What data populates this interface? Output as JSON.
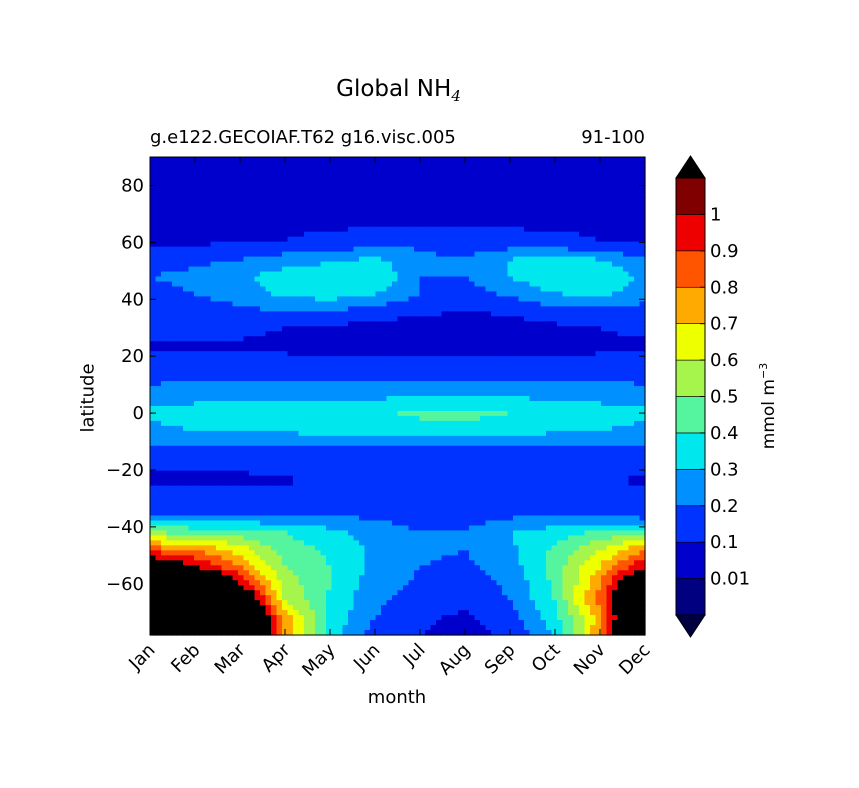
{
  "chart_data": {
    "type": "heatmap",
    "title_main": "Global NH",
    "title_sub": "4",
    "subtitle_left": "g.e122.GECOIAF.T62 g16.visc.005",
    "subtitle_right": "91-100",
    "xlabel": "month",
    "ylabel": "latitude",
    "x_ticks": [
      "Jan",
      "Feb",
      "Mar",
      "Apr",
      "May",
      "Jun",
      "Jul",
      "Aug",
      "Sep",
      "Oct",
      "Nov",
      "Dec"
    ],
    "y_ticks": [
      80,
      60,
      40,
      20,
      0,
      -20,
      -40,
      -60
    ],
    "ylim": [
      -78,
      90
    ],
    "colorbar": {
      "label_main": "mmol m",
      "label_exp": "−3",
      "levels": [
        0.01,
        0.1,
        0.2,
        0.3,
        0.4,
        0.5,
        0.6,
        0.7,
        0.8,
        0.9,
        1
      ],
      "tick_labels": [
        "0.01",
        "0.1",
        "0.2",
        "0.3",
        "0.4",
        "0.5",
        "0.6",
        "0.7",
        "0.8",
        "0.9",
        "1"
      ],
      "extend": "both",
      "colors": [
        "#000080",
        "#0000CD",
        "#0033FF",
        "#0090FF",
        "#00E8EE",
        "#55F5A0",
        "#A5F54D",
        "#EEFF00",
        "#FFAA00",
        "#FF5500",
        "#EE0000",
        "#800000"
      ],
      "under_color": "#000040",
      "over_color": "#000000"
    },
    "lat_grid": [
      -78,
      -72,
      -66,
      -60,
      -54,
      -48,
      -42,
      -36,
      -30,
      -24,
      -18,
      -12,
      -6,
      0,
      6,
      12,
      18,
      24,
      30,
      36,
      42,
      48,
      54,
      60,
      66,
      72,
      78,
      84,
      90
    ],
    "month_grid": [
      0,
      1,
      2,
      3,
      4,
      5,
      6,
      7,
      8,
      9,
      10,
      11
    ],
    "values": [
      [
        1.5,
        1.5,
        1.5,
        0.8,
        0.35,
        0.15,
        0.1,
        0.05,
        0.12,
        0.3,
        0.8,
        1.5
      ],
      [
        1.5,
        1.5,
        1.5,
        0.75,
        0.38,
        0.2,
        0.12,
        0.08,
        0.16,
        0.36,
        0.75,
        1.5
      ],
      [
        1.5,
        1.5,
        1.3,
        0.6,
        0.38,
        0.22,
        0.16,
        0.12,
        0.2,
        0.4,
        0.85,
        1.5
      ],
      [
        1.5,
        1.5,
        1.0,
        0.55,
        0.4,
        0.25,
        0.18,
        0.15,
        0.22,
        0.42,
        0.8,
        1.3
      ],
      [
        1.2,
        1.0,
        0.8,
        0.5,
        0.4,
        0.27,
        0.2,
        0.18,
        0.25,
        0.45,
        0.7,
        1.0
      ],
      [
        0.85,
        0.8,
        0.65,
        0.45,
        0.38,
        0.28,
        0.22,
        0.2,
        0.28,
        0.42,
        0.6,
        0.8
      ],
      [
        0.5,
        0.48,
        0.45,
        0.4,
        0.33,
        0.25,
        0.2,
        0.2,
        0.3,
        0.35,
        0.42,
        0.48
      ],
      [
        0.18,
        0.18,
        0.2,
        0.2,
        0.2,
        0.18,
        0.16,
        0.16,
        0.18,
        0.2,
        0.18,
        0.15
      ],
      [
        0.15,
        0.15,
        0.15,
        0.15,
        0.16,
        0.16,
        0.16,
        0.16,
        0.16,
        0.16,
        0.15,
        0.15
      ],
      [
        0.08,
        0.08,
        0.08,
        0.09,
        0.12,
        0.14,
        0.14,
        0.14,
        0.13,
        0.12,
        0.12,
        0.08
      ],
      [
        0.12,
        0.12,
        0.12,
        0.12,
        0.14,
        0.15,
        0.15,
        0.15,
        0.15,
        0.15,
        0.15,
        0.12
      ],
      [
        0.18,
        0.2,
        0.2,
        0.2,
        0.2,
        0.2,
        0.2,
        0.2,
        0.2,
        0.2,
        0.18,
        0.18
      ],
      [
        0.28,
        0.3,
        0.32,
        0.32,
        0.33,
        0.35,
        0.36,
        0.36,
        0.34,
        0.32,
        0.3,
        0.28
      ],
      [
        0.32,
        0.34,
        0.35,
        0.35,
        0.36,
        0.38,
        0.42,
        0.43,
        0.4,
        0.36,
        0.34,
        0.32
      ],
      [
        0.25,
        0.27,
        0.28,
        0.28,
        0.28,
        0.28,
        0.3,
        0.3,
        0.29,
        0.28,
        0.27,
        0.25
      ],
      [
        0.18,
        0.18,
        0.18,
        0.18,
        0.18,
        0.18,
        0.18,
        0.18,
        0.18,
        0.18,
        0.18,
        0.18
      ],
      [
        0.12,
        0.12,
        0.12,
        0.12,
        0.12,
        0.12,
        0.12,
        0.12,
        0.12,
        0.12,
        0.12,
        0.12
      ],
      [
        0.09,
        0.09,
        0.09,
        0.08,
        0.05,
        0.05,
        0.05,
        0.05,
        0.05,
        0.05,
        0.08,
        0.09
      ],
      [
        0.12,
        0.12,
        0.12,
        0.1,
        0.08,
        0.07,
        0.05,
        0.05,
        0.06,
        0.08,
        0.1,
        0.12
      ],
      [
        0.15,
        0.15,
        0.18,
        0.2,
        0.2,
        0.16,
        0.12,
        0.1,
        0.12,
        0.16,
        0.18,
        0.16
      ],
      [
        0.18,
        0.2,
        0.25,
        0.32,
        0.36,
        0.3,
        0.2,
        0.15,
        0.22,
        0.3,
        0.32,
        0.25
      ],
      [
        0.2,
        0.22,
        0.28,
        0.35,
        0.38,
        0.4,
        0.2,
        0.2,
        0.3,
        0.4,
        0.38,
        0.28
      ],
      [
        0.16,
        0.18,
        0.2,
        0.25,
        0.28,
        0.32,
        0.22,
        0.2,
        0.3,
        0.34,
        0.3,
        0.2
      ],
      [
        0.09,
        0.09,
        0.09,
        0.1,
        0.12,
        0.15,
        0.18,
        0.15,
        0.14,
        0.12,
        0.1,
        0.09
      ],
      [
        0.09,
        0.09,
        0.09,
        0.09,
        0.09,
        0.09,
        0.09,
        0.09,
        0.09,
        0.09,
        0.09,
        0.09
      ],
      [
        0.09,
        0.09,
        0.09,
        0.09,
        0.09,
        0.09,
        0.09,
        0.09,
        0.09,
        0.09,
        0.09,
        0.09
      ],
      [
        0.09,
        0.09,
        0.09,
        0.09,
        0.09,
        0.09,
        0.09,
        0.09,
        0.09,
        0.09,
        0.09,
        0.09
      ],
      [
        0.09,
        0.09,
        0.09,
        0.09,
        0.09,
        0.09,
        0.09,
        0.08,
        0.09,
        0.09,
        0.09,
        0.09
      ],
      [
        0.09,
        0.09,
        0.09,
        0.09,
        0.09,
        0.09,
        0.09,
        0.05,
        0.09,
        0.09,
        0.09,
        0.09
      ]
    ]
  }
}
